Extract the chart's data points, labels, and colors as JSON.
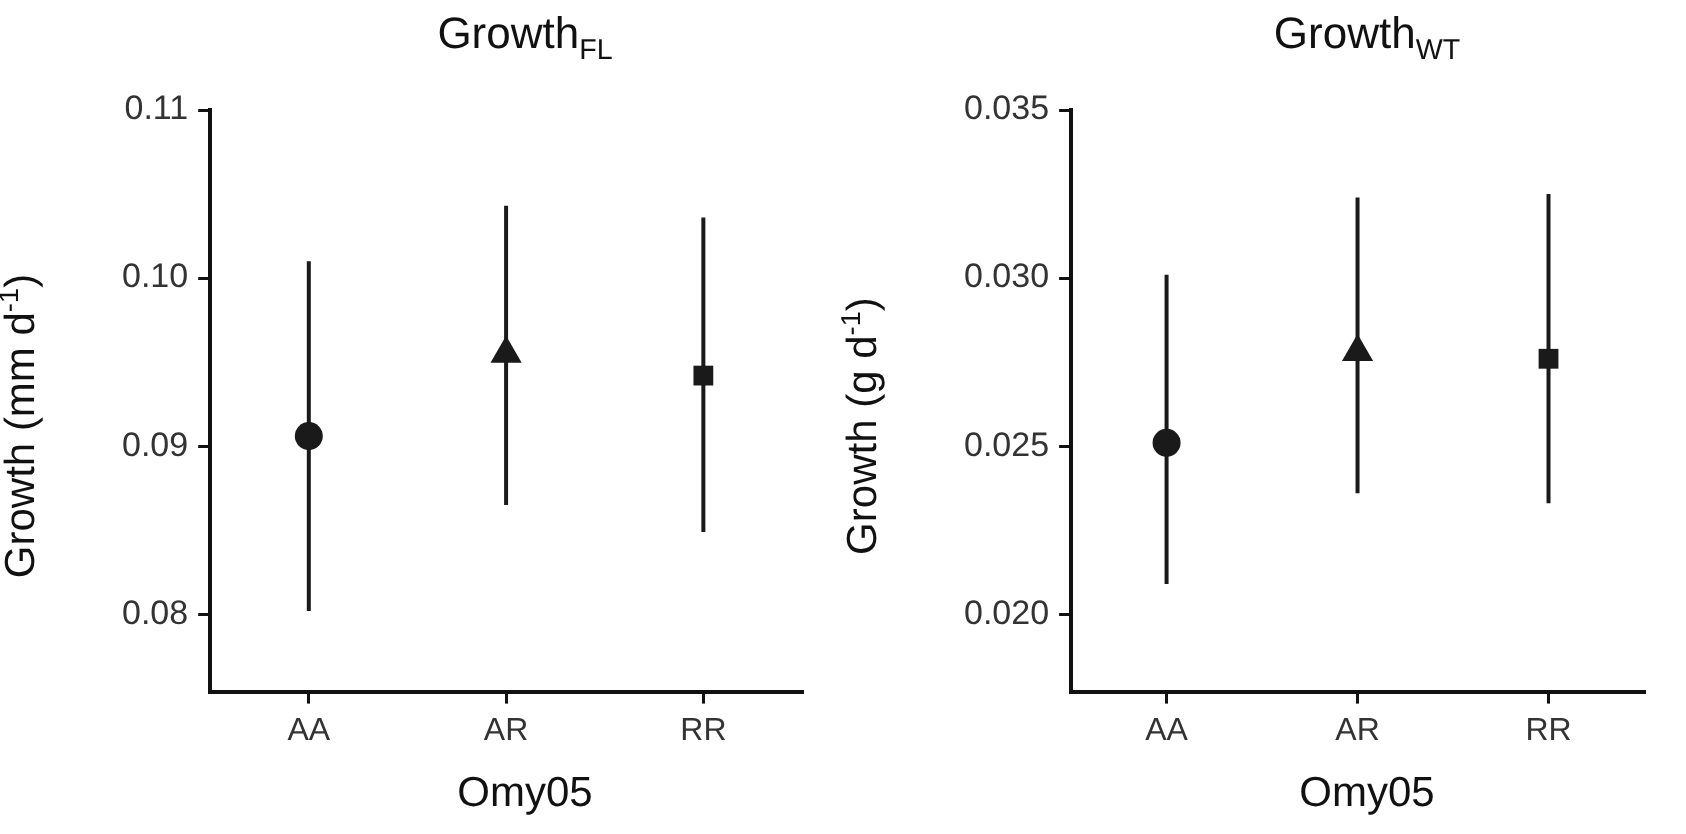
{
  "chart_data": [
    {
      "type": "scatter",
      "title": "Growth$_{FL}$",
      "xlabel": "Omy05",
      "ylabel": "Growth (mm d$^{-1}$)",
      "categories": [
        "AA",
        "AR",
        "RR"
      ],
      "ylim": [
        0.0754,
        0.11
      ],
      "yticks": [
        {
          "value": 0.08,
          "label": "0.08"
        },
        {
          "value": 0.09,
          "label": "0.09"
        },
        {
          "value": 0.1,
          "label": "0.10"
        },
        {
          "value": 0.11,
          "label": "0.11"
        }
      ],
      "grid": false,
      "legend": false,
      "series": [
        {
          "color": "#1a1a1a",
          "marker": "circle",
          "values": [
            0.0906,
            null,
            null
          ],
          "errors": [
            [
              0.0802,
              0.101
            ],
            null,
            null
          ]
        },
        {
          "color": "#1a1a1a",
          "marker": "triangle",
          "values": [
            null,
            0.0955,
            null
          ],
          "errors": [
            null,
            [
              0.0865,
              0.1043
            ],
            null
          ]
        },
        {
          "color": "#1a1a1a",
          "marker": "square",
          "values": [
            null,
            null,
            0.0942
          ],
          "errors": [
            null,
            null,
            [
              0.0849,
              0.1036
            ]
          ]
        }
      ]
    },
    {
      "type": "scatter",
      "title": "Growth$_{WT}$",
      "xlabel": "Omy05",
      "ylabel": "Growth (g d$^{-1}$)",
      "categories": [
        "AA",
        "AR",
        "RR"
      ],
      "ylim": [
        0.0177,
        0.035
      ],
      "yticks": [
        {
          "value": 0.02,
          "label": "0.020"
        },
        {
          "value": 0.025,
          "label": "0.025"
        },
        {
          "value": 0.03,
          "label": "0.030"
        },
        {
          "value": 0.035,
          "label": "0.035"
        }
      ],
      "grid": false,
      "legend": false,
      "series": [
        {
          "color": "#1a1a1a",
          "marker": "circle",
          "values": [
            0.0251,
            null,
            null
          ],
          "errors": [
            [
              0.0209,
              0.0301
            ],
            null,
            null
          ]
        },
        {
          "color": "#1a1a1a",
          "marker": "triangle",
          "values": [
            null,
            0.0278,
            null
          ],
          "errors": [
            null,
            [
              0.0236,
              0.0324
            ],
            null
          ]
        },
        {
          "color": "#1a1a1a",
          "marker": "square",
          "values": [
            null,
            null,
            0.0276
          ],
          "errors": [
            null,
            null,
            [
              0.0233,
              0.0325
            ]
          ]
        }
      ]
    }
  ]
}
